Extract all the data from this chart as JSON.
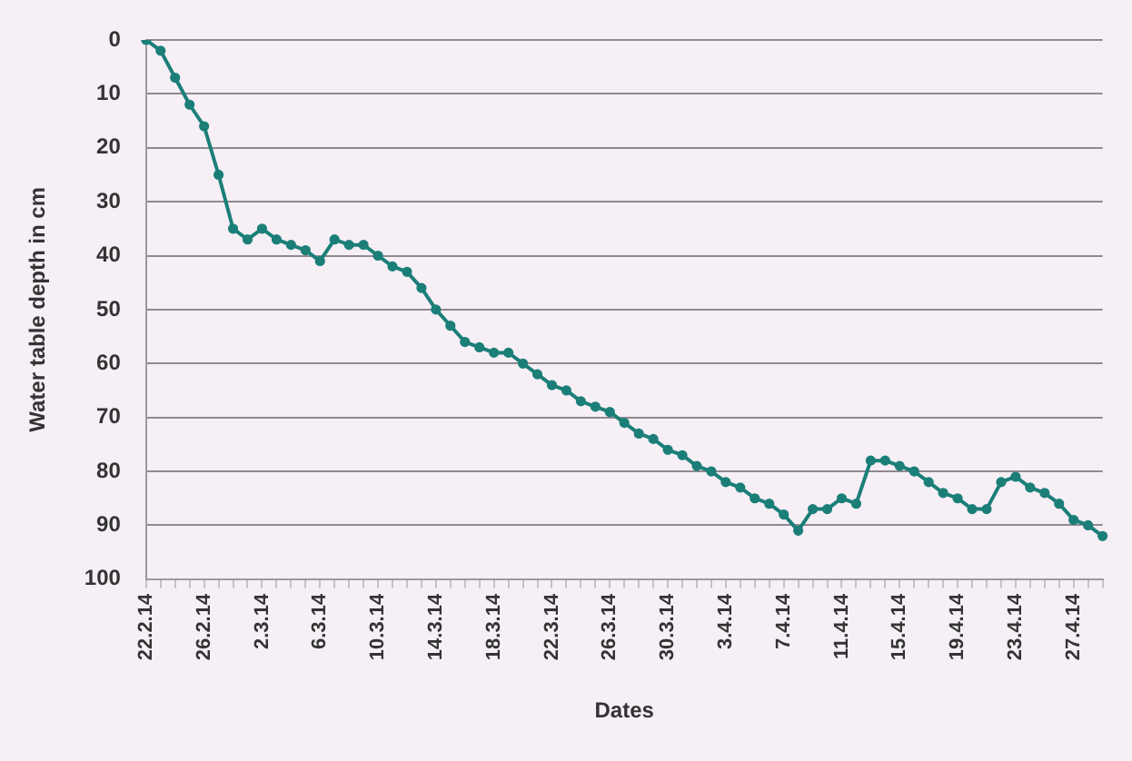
{
  "chart_data": {
    "type": "line",
    "xlabel": "Dates",
    "ylabel": "Water table depth in cm",
    "categories": [
      "22.2.14",
      null,
      null,
      null,
      "26.2.14",
      null,
      null,
      null,
      "2.3.14",
      null,
      null,
      null,
      "6.3.14",
      null,
      null,
      null,
      "10.3.14",
      null,
      null,
      null,
      "14.3.14",
      null,
      null,
      null,
      "18.3.14",
      null,
      null,
      null,
      "22.3.14",
      null,
      null,
      null,
      "26.3.14",
      null,
      null,
      null,
      "30.3.14",
      null,
      null,
      null,
      "3.4.14",
      null,
      null,
      null,
      "7.4.14",
      null,
      null,
      null,
      "11.4.14",
      null,
      null,
      null,
      "15.4.14",
      null,
      null,
      null,
      "19.4.14",
      null,
      null,
      null,
      "23.4.14",
      null,
      null,
      null,
      "27.4.14",
      null,
      null
    ],
    "series": [
      {
        "color": "#1b7f78",
        "values": [
          0,
          2,
          7,
          12,
          16,
          25,
          35,
          37,
          35,
          37,
          38,
          39,
          41,
          37,
          38,
          38,
          40,
          42,
          43,
          46,
          50,
          53,
          56,
          57,
          58,
          58,
          60,
          62,
          64,
          65,
          67,
          68,
          69,
          71,
          73,
          74,
          76,
          77,
          79,
          80,
          82,
          83,
          85,
          86,
          88,
          91,
          87,
          87,
          85,
          86,
          78,
          78,
          79,
          80,
          82,
          84,
          85,
          87,
          87,
          82,
          81,
          83,
          84,
          86,
          89,
          90,
          92
        ]
      }
    ],
    "ylim": [
      100,
      0
    ],
    "yticks": [
      0,
      10,
      20,
      30,
      40,
      50,
      60,
      70,
      80,
      90,
      100
    ],
    "grid": "y",
    "marker": "circle",
    "line_style": "solid",
    "legend": false
  }
}
